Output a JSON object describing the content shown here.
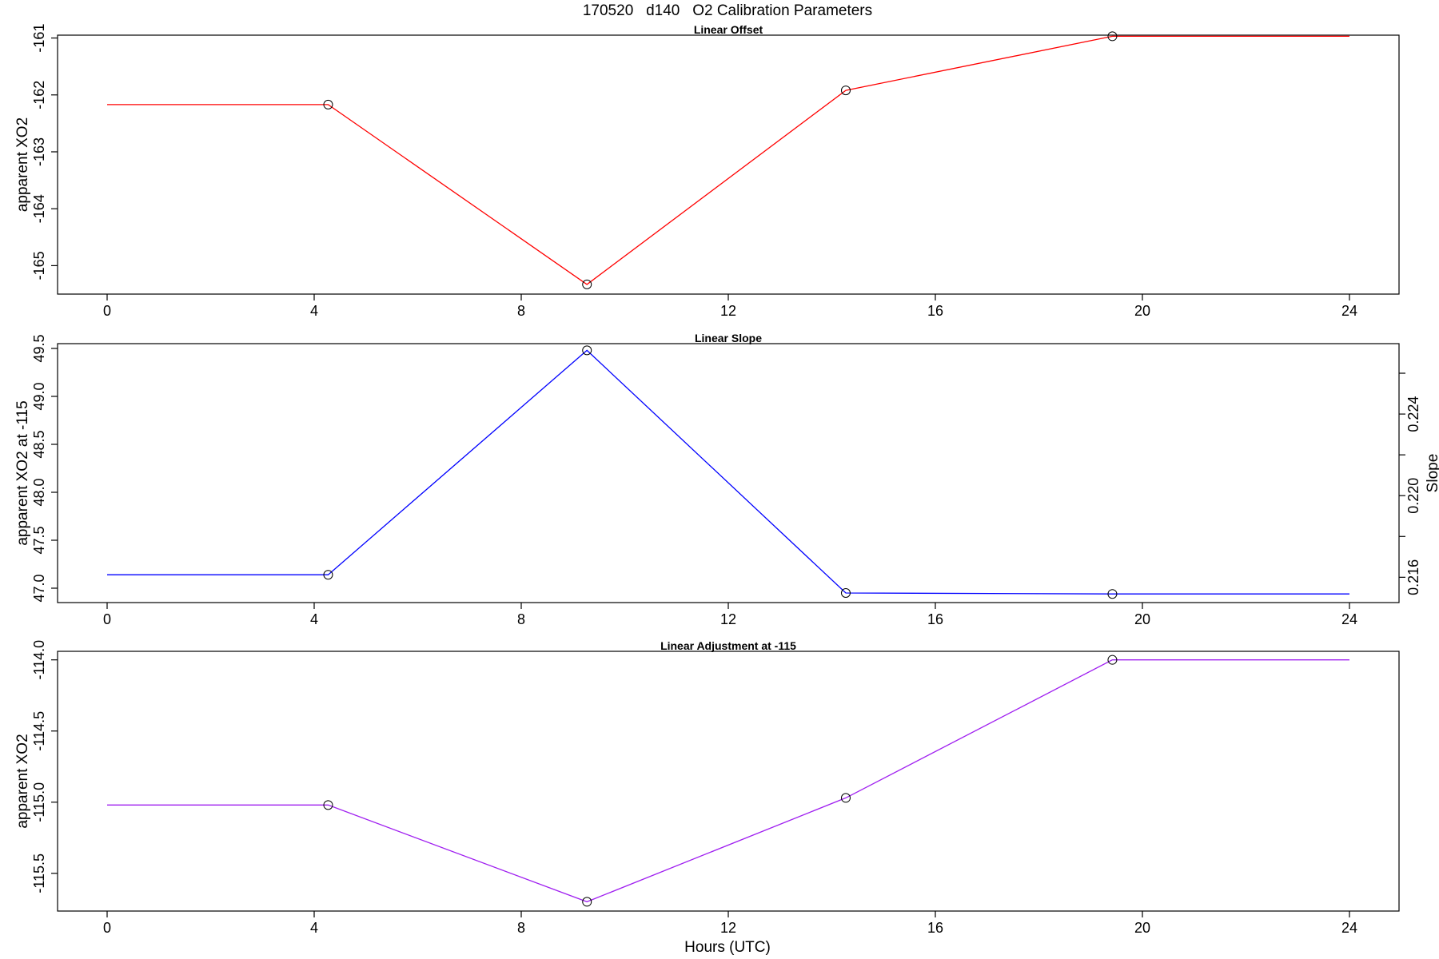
{
  "title": "170520   d140   O2 Calibration Parameters",
  "xlabel": "Hours (UTC)",
  "chart_data": [
    {
      "type": "line",
      "title": "Linear Offset",
      "ylabel": "apparent XO2",
      "xlim": [
        0,
        24
      ],
      "ylim": [
        -165.5,
        -160.95
      ],
      "x_ticks": [
        0,
        4,
        8,
        12,
        16,
        20,
        24
      ],
      "y_ticks": [
        -165,
        -164,
        -163,
        -162,
        -161
      ],
      "series": [
        {
          "color": "#ff0000",
          "x": [
            0,
            4.27,
            9.27,
            14.27,
            19.42,
            24
          ],
          "y": [
            -162.17,
            -162.17,
            -165.33,
            -161.92,
            -160.97,
            -160.97
          ],
          "marker_points": [
            1,
            2,
            3,
            4
          ]
        }
      ]
    },
    {
      "type": "line",
      "title": "Linear Slope",
      "ylabel": "apparent XO2 at -115",
      "y2label": "Slope",
      "xlim": [
        0,
        24
      ],
      "ylim": [
        46.85,
        49.55
      ],
      "y2lim": [
        0.21476,
        0.22745
      ],
      "x_ticks": [
        0,
        4,
        8,
        12,
        16,
        20,
        24
      ],
      "y_ticks": [
        47.0,
        47.5,
        48.0,
        48.5,
        49.0,
        49.5
      ],
      "y_tick_labels": [
        "47.0",
        "47.5",
        "48.0",
        "48.5",
        "49.0",
        "49.5"
      ],
      "y2_ticks": [
        0.216,
        0.218,
        0.22,
        0.222,
        0.224,
        0.226
      ],
      "y2_tick_labels": [
        "0.216",
        "",
        "0.220",
        "",
        "0.224",
        ""
      ],
      "series": [
        {
          "color": "#0000ff",
          "x": [
            0,
            4.27,
            9.27,
            14.27,
            19.42,
            24
          ],
          "y": [
            47.14,
            47.14,
            49.48,
            46.95,
            46.94,
            46.94
          ],
          "marker_points": [
            1,
            2,
            3,
            4
          ]
        }
      ]
    },
    {
      "type": "line",
      "title": "Linear Adjustment at -115",
      "ylabel": "apparent XO2",
      "xlim": [
        0,
        24
      ],
      "ylim": [
        -115.765,
        -113.94
      ],
      "x_ticks": [
        0,
        4,
        8,
        12,
        16,
        20,
        24
      ],
      "y_ticks": [
        -115.5,
        -115.0,
        -114.5,
        -114.0
      ],
      "y_tick_labels": [
        "-115.5",
        "-115.0",
        "-114.5",
        "-114.0"
      ],
      "series": [
        {
          "color": "#a020f0",
          "x": [
            0,
            4.27,
            9.27,
            14.27,
            19.42,
            24
          ],
          "y": [
            -115.02,
            -115.02,
            -115.7,
            -114.97,
            -114.0,
            -114.0
          ],
          "marker_points": [
            1,
            2,
            3,
            4
          ]
        }
      ]
    }
  ]
}
